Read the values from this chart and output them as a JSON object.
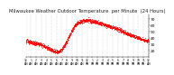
{
  "title": "Milwaukee Weather Outdoor Temperature  per Minute  (24 Hours)",
  "title_fontsize": 3.8,
  "dot_color": "#ff0000",
  "dot_size": 0.3,
  "bg_color": "#ffffff",
  "ylim": [
    10,
    78
  ],
  "yticks": [
    20,
    30,
    40,
    50,
    60,
    70
  ],
  "ytick_fontsize": 3.2,
  "xtick_fontsize": 2.2,
  "grid_color": "#aaaaaa",
  "n_points": 1440,
  "temp_points": [
    [
      0,
      35
    ],
    [
      1,
      33
    ],
    [
      2,
      31
    ],
    [
      3,
      29
    ],
    [
      4,
      25
    ],
    [
      5,
      21
    ],
    [
      6,
      18
    ],
    [
      7,
      22
    ],
    [
      8,
      35
    ],
    [
      9,
      52
    ],
    [
      10,
      63
    ],
    [
      11,
      67
    ],
    [
      12,
      68
    ],
    [
      13,
      67
    ],
    [
      14,
      65
    ],
    [
      15,
      62
    ],
    [
      16,
      60
    ],
    [
      17,
      57
    ],
    [
      18,
      54
    ],
    [
      19,
      50
    ],
    [
      20,
      46
    ],
    [
      21,
      43
    ],
    [
      22,
      40
    ],
    [
      23,
      37
    ],
    [
      24,
      35
    ]
  ]
}
